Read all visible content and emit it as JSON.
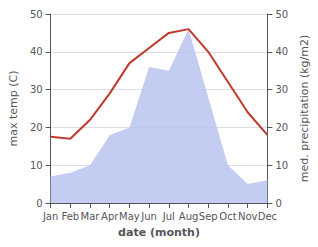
{
  "chart_data": {
    "type": "line",
    "xlabel": "date (month)",
    "ylabel": "max temp (C)",
    "y2label": "med. precipitation (kg/m2)",
    "categories": [
      "Jan",
      "Feb",
      "Mar",
      "Apr",
      "May",
      "Jun",
      "Jul",
      "Aug",
      "Sep",
      "Oct",
      "Nov",
      "Dec"
    ],
    "series": [
      {
        "type": "area",
        "axis": "y2",
        "color": "#b8c4ee",
        "values": [
          7,
          8,
          10,
          18,
          20,
          36,
          35,
          46,
          28,
          10,
          5,
          6
        ]
      },
      {
        "type": "line",
        "color": "#c0392b",
        "values": [
          17.5,
          17,
          22,
          29,
          37,
          41,
          45,
          46,
          40,
          32,
          24,
          18
        ]
      }
    ],
    "ylim": [
      0,
      50
    ],
    "yticks": [
      0,
      10,
      20,
      30,
      40,
      50
    ],
    "y2lim": [
      0,
      50
    ],
    "y2ticks": [
      0,
      10,
      20,
      30,
      40,
      50
    ],
    "grid": true
  }
}
